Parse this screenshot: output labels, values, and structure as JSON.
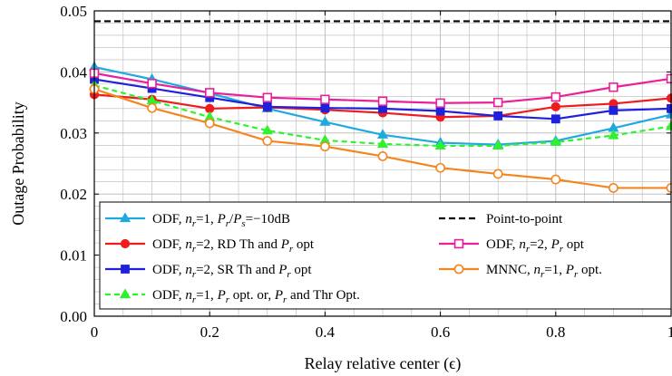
{
  "chart_data": {
    "type": "line",
    "xlabel": "Relay relative center (ϵ)",
    "ylabel": "Outage Probability",
    "xlim": [
      0,
      1
    ],
    "ylim": [
      0,
      0.05
    ],
    "x_ticks": [
      0,
      0.2,
      0.4,
      0.6,
      0.8,
      1
    ],
    "x_tick_labels": [
      "0",
      "0.2",
      "0.4",
      "0.6",
      "0.8",
      "1"
    ],
    "y_ticks": [
      0,
      0.01,
      0.02,
      0.03,
      0.04,
      0.05
    ],
    "y_tick_labels": [
      "0.00",
      "0.01",
      "0.02",
      "0.03",
      "0.04",
      "0.05"
    ],
    "grid": true,
    "legend_position": "bottom-inside",
    "x": [
      0,
      0.1,
      0.2,
      0.3,
      0.4,
      0.5,
      0.6,
      0.7,
      0.8,
      0.9,
      1.0
    ],
    "series": [
      {
        "id": "odf-nr1-10db",
        "name": "ODF, nr=1, Pr/Ps=−10dB",
        "legend": [
          {
            "t": "ODF, "
          },
          {
            "t": "n",
            "i": 1
          },
          {
            "t": "r",
            "i": 1,
            "sub": 1
          },
          {
            "t": "=1, "
          },
          {
            "t": "P",
            "i": 1
          },
          {
            "t": "r",
            "i": 1,
            "sub": 1
          },
          {
            "t": "/"
          },
          {
            "t": "P",
            "i": 1
          },
          {
            "t": "s",
            "i": 1,
            "sub": 1
          },
          {
            "t": "=−10dB"
          }
        ],
        "color": "#1fa9e1",
        "dash": "",
        "marker": "triangle",
        "hollow": false,
        "values": [
          0.0408,
          0.0388,
          0.0365,
          0.034,
          0.0318,
          0.0297,
          0.0284,
          0.0281,
          0.0287,
          0.0308,
          0.033
        ]
      },
      {
        "id": "odf-nr2-rd",
        "name": "ODF, nr=2, RD Th and Pr opt",
        "legend": [
          {
            "t": "ODF, "
          },
          {
            "t": "n",
            "i": 1
          },
          {
            "t": "r",
            "i": 1,
            "sub": 1
          },
          {
            "t": "=2, RD Th and "
          },
          {
            "t": "P",
            "i": 1
          },
          {
            "t": "r",
            "i": 1,
            "sub": 1
          },
          {
            "t": " opt"
          }
        ],
        "color": "#ee1c1c",
        "dash": "",
        "marker": "circle",
        "hollow": false,
        "values": [
          0.0363,
          0.0355,
          0.034,
          0.0342,
          0.0338,
          0.0333,
          0.0326,
          0.0328,
          0.0343,
          0.0348,
          0.0357
        ]
      },
      {
        "id": "odf-nr2-sr",
        "name": "ODF, nr=2, SR Th and Pr opt",
        "legend": [
          {
            "t": "ODF, "
          },
          {
            "t": "n",
            "i": 1
          },
          {
            "t": "r",
            "i": 1,
            "sub": 1
          },
          {
            "t": "=2, SR Th and "
          },
          {
            "t": "P",
            "i": 1
          },
          {
            "t": "r",
            "i": 1,
            "sub": 1
          },
          {
            "t": " opt"
          }
        ],
        "color": "#1f21dd",
        "dash": "",
        "marker": "square",
        "hollow": false,
        "values": [
          0.0388,
          0.0373,
          0.0358,
          0.0343,
          0.0341,
          0.034,
          0.0336,
          0.0328,
          0.0323,
          0.0337,
          0.034
        ]
      },
      {
        "id": "odf-nr1-opt",
        "name": "ODF, nr=1, Pr opt. or, Pr and Thr Opt.",
        "legend": [
          {
            "t": "ODF, "
          },
          {
            "t": "n",
            "i": 1
          },
          {
            "t": "r",
            "i": 1,
            "sub": 1
          },
          {
            "t": "=1, "
          },
          {
            "t": "P",
            "i": 1
          },
          {
            "t": "r",
            "i": 1,
            "sub": 1
          },
          {
            "t": " opt. or, "
          },
          {
            "t": "P",
            "i": 1
          },
          {
            "t": "r",
            "i": 1,
            "sub": 1
          },
          {
            "t": " and Thr Opt."
          }
        ],
        "color": "#2ef22e",
        "dash": "6,4",
        "marker": "triangle",
        "hollow": false,
        "values": [
          0.0378,
          0.0353,
          0.0326,
          0.0304,
          0.0288,
          0.0282,
          0.0279,
          0.0279,
          0.0285,
          0.0296,
          0.0311
        ]
      },
      {
        "id": "p2p",
        "name": "Point-to-point",
        "legend": [
          {
            "t": "Point-to-point"
          }
        ],
        "color": "#000000",
        "dash": "7,4",
        "marker": "none",
        "hollow": false,
        "values": [
          0.0483,
          0.0483,
          0.0483,
          0.0483,
          0.0483,
          0.0483,
          0.0483,
          0.0483,
          0.0483,
          0.0483,
          0.0483
        ]
      },
      {
        "id": "odf-nr2-pr",
        "name": "ODF, nr=2, Pr opt",
        "legend": [
          {
            "t": "ODF, "
          },
          {
            "t": "n",
            "i": 1
          },
          {
            "t": "r",
            "i": 1,
            "sub": 1
          },
          {
            "t": "=2, "
          },
          {
            "t": "P",
            "i": 1
          },
          {
            "t": "r",
            "i": 1,
            "sub": 1
          },
          {
            "t": " opt"
          }
        ],
        "color": "#e8219a",
        "dash": "",
        "marker": "square",
        "hollow": true,
        "values": [
          0.0398,
          0.0381,
          0.0366,
          0.0358,
          0.0355,
          0.0352,
          0.0349,
          0.035,
          0.0359,
          0.0375,
          0.0389
        ]
      },
      {
        "id": "mnnc",
        "name": "MNNC, nr=1, Pr opt.",
        "legend": [
          {
            "t": "MNNC, "
          },
          {
            "t": "n",
            "i": 1
          },
          {
            "t": "r",
            "i": 1,
            "sub": 1
          },
          {
            "t": "=1, "
          },
          {
            "t": "P",
            "i": 1
          },
          {
            "t": "r",
            "i": 1,
            "sub": 1
          },
          {
            "t": " opt."
          }
        ],
        "color": "#f4851f",
        "dash": "",
        "marker": "circle",
        "hollow": true,
        "values": [
          0.0372,
          0.0341,
          0.0316,
          0.0287,
          0.0278,
          0.0262,
          0.0243,
          0.0233,
          0.0224,
          0.021,
          0.021
        ]
      }
    ],
    "legend_order": [
      "odf-nr1-10db",
      "p2p",
      "odf-nr2-rd",
      "odf-nr2-pr",
      "odf-nr2-sr",
      "mnnc",
      "odf-nr1-opt"
    ]
  }
}
